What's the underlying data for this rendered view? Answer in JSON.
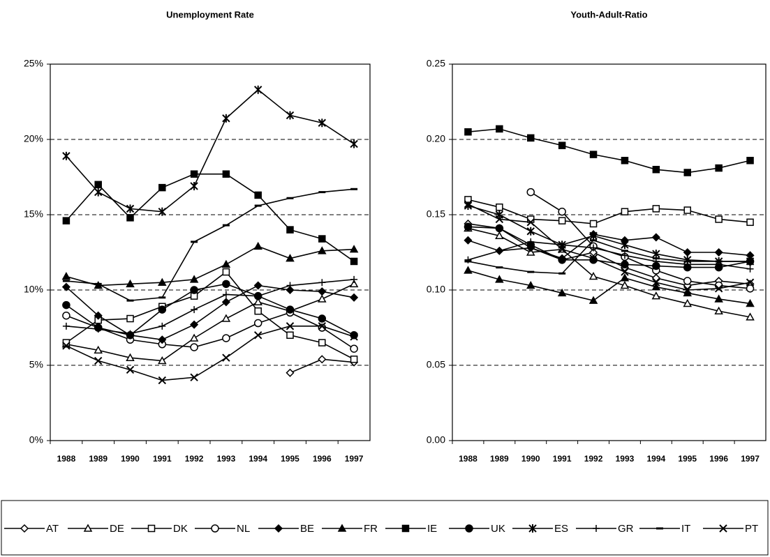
{
  "chart_data": [
    {
      "type": "line",
      "title": "Unemployment Rate",
      "categories": [
        "1988",
        "1989",
        "1990",
        "1991",
        "1992",
        "1993",
        "1994",
        "1995",
        "1996",
        "1997"
      ],
      "ylim": [
        0,
        25
      ],
      "yticks": [
        {
          "value": 0,
          "label": "0%"
        },
        {
          "value": 5,
          "label": "5%"
        },
        {
          "value": 10,
          "label": "10%"
        },
        {
          "value": 15,
          "label": "15%"
        },
        {
          "value": 20,
          "label": "20%"
        },
        {
          "value": 25,
          "label": "25%"
        }
      ],
      "grid": true,
      "series": [
        {
          "name": "AT",
          "color": "#000000",
          "marker": "diamond-open",
          "values": [
            null,
            null,
            null,
            null,
            null,
            null,
            null,
            4.5,
            5.4,
            5.2
          ]
        },
        {
          "name": "DE",
          "color": "#000000",
          "marker": "triangle-open",
          "values": [
            6.4,
            6.0,
            5.5,
            5.3,
            6.8,
            8.1,
            9.2,
            8.6,
            9.4,
            10.4
          ]
        },
        {
          "name": "DK",
          "color": "#000000",
          "marker": "square-open",
          "values": [
            6.5,
            8.0,
            8.1,
            8.9,
            9.6,
            11.2,
            8.6,
            7.0,
            6.5,
            5.4
          ]
        },
        {
          "name": "NL",
          "color": "#000000",
          "marker": "circle-open",
          "values": [
            8.3,
            7.5,
            6.7,
            6.4,
            6.2,
            6.8,
            7.8,
            8.5,
            7.5,
            6.1
          ]
        },
        {
          "name": "BE",
          "color": "#000000",
          "marker": "diamond",
          "values": [
            10.2,
            8.3,
            7.0,
            6.7,
            7.7,
            9.2,
            10.3,
            10.0,
            9.9,
            9.5
          ]
        },
        {
          "name": "FR",
          "color": "#000000",
          "marker": "triangle",
          "values": [
            10.9,
            10.3,
            10.4,
            10.5,
            10.7,
            11.7,
            12.9,
            12.1,
            12.6,
            12.7
          ]
        },
        {
          "name": "IE",
          "color": "#000000",
          "marker": "square",
          "values": [
            14.6,
            17.0,
            14.8,
            16.8,
            17.7,
            17.7,
            16.3,
            14.0,
            13.4,
            11.9
          ]
        },
        {
          "name": "UK",
          "color": "#000000",
          "marker": "circle",
          "values": [
            9.0,
            7.5,
            7.0,
            8.7,
            10.0,
            10.4,
            9.6,
            8.7,
            8.1,
            7.0
          ]
        },
        {
          "name": "ES",
          "color": "#000000",
          "marker": "asterisk",
          "values": [
            18.9,
            16.5,
            15.4,
            15.2,
            16.9,
            21.4,
            23.3,
            21.6,
            21.1,
            19.7
          ]
        },
        {
          "name": "GR",
          "color": "#000000",
          "marker": "plus",
          "values": [
            7.6,
            7.4,
            7.1,
            7.6,
            8.7,
            9.7,
            9.6,
            10.3,
            10.5,
            10.7
          ]
        },
        {
          "name": "IT",
          "color": "#000000",
          "marker": "dash",
          "values": [
            10.6,
            10.4,
            9.3,
            9.5,
            13.2,
            14.3,
            15.6,
            16.1,
            16.5,
            16.7
          ]
        },
        {
          "name": "PT",
          "color": "#000000",
          "marker": "x",
          "values": [
            6.3,
            5.3,
            4.7,
            4.0,
            4.2,
            5.5,
            7.0,
            7.6,
            7.6,
            6.9
          ]
        }
      ]
    },
    {
      "type": "line",
      "title": "Youth-Adult-Ratio",
      "categories": [
        "1988",
        "1989",
        "1990",
        "1991",
        "1992",
        "1993",
        "1994",
        "1995",
        "1996",
        "1997"
      ],
      "ylim": [
        0,
        0.25
      ],
      "yticks": [
        {
          "value": 0,
          "label": "0.00"
        },
        {
          "value": 0.05,
          "label": "0.05"
        },
        {
          "value": 0.1,
          "label": "0.10"
        },
        {
          "value": 0.15,
          "label": "0.15"
        },
        {
          "value": 0.2,
          "label": "0.20"
        },
        {
          "value": 0.25,
          "label": "0.25"
        }
      ],
      "grid": true,
      "series": [
        {
          "name": "AT",
          "color": "#000000",
          "marker": "diamond-open",
          "values": [
            0.144,
            0.141,
            0.128,
            0.12,
            0.125,
            0.115,
            0.108,
            0.103,
            0.106,
            0.104
          ]
        },
        {
          "name": "DE",
          "color": "#000000",
          "marker": "triangle-open",
          "values": [
            0.141,
            0.136,
            0.125,
            0.127,
            0.109,
            0.103,
            0.096,
            0.091,
            0.086,
            0.082
          ]
        },
        {
          "name": "DK",
          "color": "#000000",
          "marker": "square-open",
          "values": [
            0.16,
            0.155,
            0.147,
            0.146,
            0.144,
            0.152,
            0.154,
            0.153,
            0.147,
            0.145
          ]
        },
        {
          "name": "NL",
          "color": "#000000",
          "marker": "circle-open",
          "values": [
            null,
            null,
            0.165,
            0.152,
            0.129,
            0.122,
            0.113,
            0.106,
            0.103,
            0.101
          ]
        },
        {
          "name": "BE",
          "color": "#000000",
          "marker": "diamond",
          "values": [
            0.133,
            0.126,
            0.128,
            0.121,
            0.137,
            0.133,
            0.135,
            0.125,
            0.125,
            0.123
          ]
        },
        {
          "name": "FR",
          "color": "#000000",
          "marker": "triangle",
          "values": [
            0.113,
            0.107,
            0.103,
            0.098,
            0.093,
            0.108,
            0.102,
            0.098,
            0.094,
            0.091
          ]
        },
        {
          "name": "IE",
          "color": "#000000",
          "marker": "square",
          "values": [
            0.205,
            0.207,
            0.201,
            0.196,
            0.19,
            0.186,
            0.18,
            0.178,
            0.181,
            0.186
          ]
        },
        {
          "name": "UK",
          "color": "#000000",
          "marker": "circle",
          "values": [
            0.142,
            0.141,
            0.13,
            0.12,
            0.12,
            0.117,
            0.116,
            0.115,
            0.115,
            0.119
          ]
        },
        {
          "name": "ES",
          "color": "#000000",
          "marker": "asterisk",
          "values": [
            0.156,
            0.15,
            0.139,
            0.13,
            0.136,
            0.13,
            0.124,
            0.12,
            0.119,
            0.119
          ]
        },
        {
          "name": "GR",
          "color": "#000000",
          "marker": "plus",
          "values": [
            0.12,
            0.126,
            0.132,
            0.13,
            0.128,
            0.123,
            0.119,
            0.117,
            0.117,
            0.114
          ]
        },
        {
          "name": "IT",
          "color": "#000000",
          "marker": "dash",
          "values": [
            0.119,
            0.115,
            0.112,
            0.111,
            0.133,
            0.126,
            0.121,
            0.119,
            0.119,
            0.119
          ]
        },
        {
          "name": "PT",
          "color": "#000000",
          "marker": "x",
          "values": [
            0.157,
            0.147,
            0.145,
            0.127,
            0.121,
            0.112,
            0.105,
            0.1,
            0.101,
            0.105
          ]
        }
      ]
    }
  ]
}
